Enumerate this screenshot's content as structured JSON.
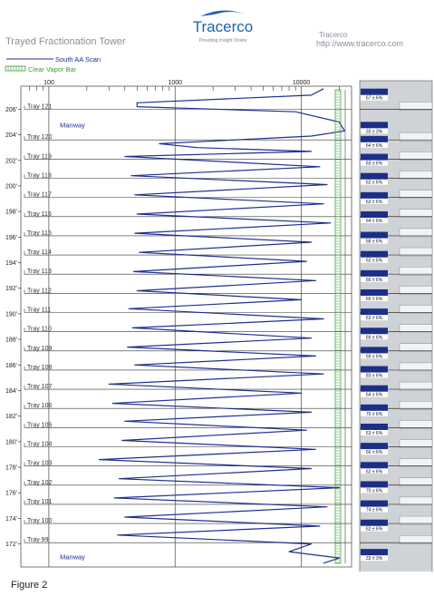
{
  "header": {
    "title": "Trayed Fractionation Tower",
    "logo": "Tracerco",
    "logo_tagline": "Providing Insight Onsite",
    "company": "Tracerco",
    "url": "http://www.tracerco.com"
  },
  "legend": {
    "scan_label": "South AA Scan",
    "vapor_label": "Clear Vapor Bar",
    "scan_color": "#1f2f8f",
    "vapor_color": "#3c9a3c"
  },
  "caption": "Figure 2",
  "chart_data": {
    "type": "line",
    "x_scale": "log",
    "x_ticks": [
      "100",
      "1000",
      "10000"
    ],
    "y_unit": "ft",
    "y_ticks": [
      "206'",
      "204'",
      "202'",
      "200'",
      "198'",
      "196'",
      "194'",
      "192'",
      "190'",
      "188'",
      "186'",
      "184'",
      "182'",
      "180'",
      "178'",
      "176'",
      "174'",
      "172'"
    ],
    "y_tick_values": [
      206,
      204,
      202,
      200,
      198,
      196,
      194,
      192,
      190,
      188,
      186,
      184,
      182,
      180,
      178,
      176,
      174,
      172
    ],
    "ylim": [
      170.2,
      207.8
    ],
    "trays": [
      {
        "label": "Tray 121",
        "elev": 206.0
      },
      {
        "label": "Tray 120",
        "elev": 203.6
      },
      {
        "label": "Tray 119",
        "elev": 202.1
      },
      {
        "label": "Tray 118",
        "elev": 200.6
      },
      {
        "label": "Tray 117",
        "elev": 199.1
      },
      {
        "label": "Tray 116",
        "elev": 197.6
      },
      {
        "label": "Tray 115",
        "elev": 196.1
      },
      {
        "label": "Tray 114",
        "elev": 194.6
      },
      {
        "label": "Tray 113",
        "elev": 193.1
      },
      {
        "label": "Tray 112",
        "elev": 191.6
      },
      {
        "label": "Tray 111",
        "elev": 190.1
      },
      {
        "label": "Tray 110",
        "elev": 188.6
      },
      {
        "label": "Tray 109",
        "elev": 187.1
      },
      {
        "label": "Tray 108",
        "elev": 185.6
      },
      {
        "label": "Tray 107",
        "elev": 184.1
      },
      {
        "label": "Tray 106",
        "elev": 182.6
      },
      {
        "label": "Tray 105",
        "elev": 181.1
      },
      {
        "label": "Tray 104",
        "elev": 179.6
      },
      {
        "label": "Tray 103",
        "elev": 178.1
      },
      {
        "label": "Tray 102",
        "elev": 176.6
      },
      {
        "label": "Tray 101",
        "elev": 175.1
      },
      {
        "label": "Tray 100",
        "elev": 173.6
      },
      {
        "label": "Tray 99",
        "elev": 172.1
      }
    ],
    "annotations": [
      {
        "text": "Manway",
        "elev": 204.8
      },
      {
        "text": "Manway",
        "elev": 171.0
      }
    ],
    "scan_series": {
      "name": "South AA Scan",
      "points": [
        [
          15000,
          207.6
        ],
        [
          12000,
          207.1
        ],
        [
          500,
          206.5
        ],
        [
          500,
          206.2
        ],
        [
          9000,
          205.8
        ],
        [
          20000,
          205.0
        ],
        [
          22000,
          204.3
        ],
        [
          12000,
          203.9
        ],
        [
          750,
          203.3
        ],
        [
          1500,
          203.0
        ],
        [
          12000,
          202.7
        ],
        [
          400,
          202.3
        ],
        [
          14000,
          201.5
        ],
        [
          450,
          200.8
        ],
        [
          16000,
          200.1
        ],
        [
          480,
          199.3
        ],
        [
          15000,
          198.6
        ],
        [
          500,
          197.8
        ],
        [
          17000,
          197.1
        ],
        [
          480,
          196.3
        ],
        [
          12000,
          195.6
        ],
        [
          520,
          194.8
        ],
        [
          11000,
          194.1
        ],
        [
          470,
          193.3
        ],
        [
          13000,
          192.6
        ],
        [
          500,
          191.8
        ],
        [
          10000,
          191.1
        ],
        [
          430,
          190.4
        ],
        [
          15000,
          189.6
        ],
        [
          460,
          188.9
        ],
        [
          12000,
          188.1
        ],
        [
          420,
          187.4
        ],
        [
          13000,
          186.7
        ],
        [
          480,
          186.0
        ],
        [
          15000,
          185.3
        ],
        [
          300,
          184.5
        ],
        [
          10000,
          183.8
        ],
        [
          320,
          183.0
        ],
        [
          12000,
          182.3
        ],
        [
          400,
          181.6
        ],
        [
          11000,
          180.9
        ],
        [
          380,
          180.1
        ],
        [
          13000,
          179.4
        ],
        [
          250,
          178.6
        ],
        [
          12000,
          177.9
        ],
        [
          360,
          177.1
        ],
        [
          20000,
          176.4
        ],
        [
          330,
          175.6
        ],
        [
          16000,
          174.9
        ],
        [
          400,
          174.1
        ],
        [
          14000,
          173.4
        ],
        [
          350,
          172.7
        ],
        [
          12000,
          172.0
        ],
        [
          8000,
          171.4
        ],
        [
          20000,
          170.9
        ],
        [
          15000,
          170.5
        ]
      ]
    },
    "tray_readings": [
      {
        "value": "67 ± 6%",
        "elev": 206.9
      },
      {
        "value": "33 ± 3%",
        "elev": 204.3
      },
      {
        "value": "64 ± 6%",
        "elev": 203.2
      },
      {
        "value": "63 ± 6%",
        "elev": 201.8
      },
      {
        "value": "62 ± 6%",
        "elev": 200.3
      },
      {
        "value": "63 ± 6%",
        "elev": 198.8
      },
      {
        "value": "64 ± 6%",
        "elev": 197.3
      },
      {
        "value": "58 ± 6%",
        "elev": 195.7
      },
      {
        "value": "62 ± 6%",
        "elev": 194.2
      },
      {
        "value": "66 ± 6%",
        "elev": 192.7
      },
      {
        "value": "65 ± 6%",
        "elev": 191.2
      },
      {
        "value": "63 ± 6%",
        "elev": 189.7
      },
      {
        "value": "69 ± 6%",
        "elev": 188.2
      },
      {
        "value": "59 ± 6%",
        "elev": 186.7
      },
      {
        "value": "83 ± 6%",
        "elev": 185.2
      },
      {
        "value": "64 ± 6%",
        "elev": 183.7
      },
      {
        "value": "70 ± 6%",
        "elev": 182.2
      },
      {
        "value": "63 ± 6%",
        "elev": 180.7
      },
      {
        "value": "66 ± 6%",
        "elev": 179.2
      },
      {
        "value": "62 ± 6%",
        "elev": 177.7
      },
      {
        "value": "70 ± 6%",
        "elev": 176.2
      },
      {
        "value": "74 ± 6%",
        "elev": 174.7
      },
      {
        "value": "62 ± 6%",
        "elev": 173.2
      },
      {
        "value": "33 ± 3%",
        "elev": 170.9
      }
    ],
    "grid": true
  }
}
